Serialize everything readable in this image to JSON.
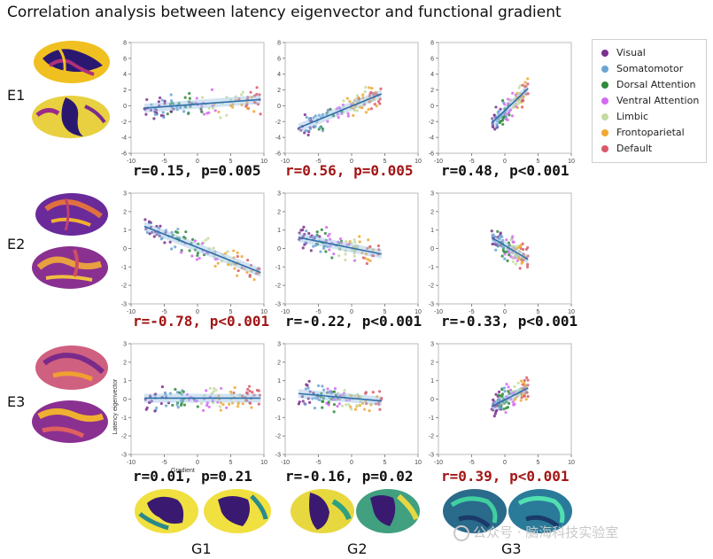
{
  "title": "Correlation analysis between latency eigenvector and functional gradient",
  "row_labels": [
    "E1",
    "E2",
    "E3"
  ],
  "column_labels": [
    "G1",
    "G2",
    "G3"
  ],
  "axis_labels": {
    "x": "Gradient",
    "y": "Latency eigenvector"
  },
  "legend": [
    {
      "label": "Visual",
      "color": "#7b2f8e"
    },
    {
      "label": "Somatomotor",
      "color": "#6aa4d4"
    },
    {
      "label": "Dorsal Attention",
      "color": "#2e8b3a"
    },
    {
      "label": "Ventral Attention",
      "color": "#d36bf0"
    },
    {
      "label": "Limbic",
      "color": "#c4dca0"
    },
    {
      "label": "Frontoparietal",
      "color": "#f0a830"
    },
    {
      "label": "Default",
      "color": "#d95a6a"
    }
  ],
  "stats": [
    [
      {
        "text": "r=0.15, p=0.005",
        "highlight": false
      },
      {
        "text": "r=0.56, p=0.005",
        "highlight": true
      },
      {
        "text": "r=0.48, p<0.001",
        "highlight": false
      }
    ],
    [
      {
        "text": "r=-0.78, p<0.001",
        "highlight": true
      },
      {
        "text": "r=-0.22, p<0.001",
        "highlight": false
      },
      {
        "text": "r=-0.33, p<0.001",
        "highlight": false
      }
    ],
    [
      {
        "text": "r=0.01, p=0.21",
        "highlight": false
      },
      {
        "text": "r=-0.16, p=0.02",
        "highlight": false
      },
      {
        "text": "r=0.39, p<0.001",
        "highlight": true
      }
    ]
  ],
  "colors": {
    "highlight": "#a31515",
    "normal": "#111111",
    "fit_line": "#2f6fa8",
    "band": "#9cc2e3"
  },
  "watermark": "公众号 · 脑海科技实验室",
  "chart_data": [
    {
      "type": "scatter",
      "row": "E1",
      "col": "G1",
      "xlim": [
        -10,
        10
      ],
      "ylim": [
        -6,
        8
      ],
      "xticks": [
        -10,
        -5,
        0,
        5,
        10
      ],
      "yticks": [
        -6,
        -4,
        -2,
        0,
        2,
        4,
        6,
        8
      ],
      "fit": {
        "x": [
          -8,
          9.5
        ],
        "y": [
          -0.3,
          0.8
        ]
      },
      "x_range": [
        -8,
        9.5
      ],
      "r": 0.15,
      "p": "0.005"
    },
    {
      "type": "scatter",
      "row": "E1",
      "col": "G2",
      "xlim": [
        -10,
        10
      ],
      "ylim": [
        -6,
        8
      ],
      "xticks": [
        -10,
        -5,
        0,
        5,
        10
      ],
      "yticks": [
        -6,
        -4,
        -2,
        0,
        2,
        4,
        6,
        8
      ],
      "fit": {
        "x": [
          -8,
          4.5
        ],
        "y": [
          -2.8,
          1.5
        ]
      },
      "x_range": [
        -8,
        4.5
      ],
      "r": 0.56,
      "p": "0.005"
    },
    {
      "type": "scatter",
      "row": "E1",
      "col": "G3",
      "xlim": [
        -10,
        10
      ],
      "ylim": [
        -6,
        8
      ],
      "xticks": [
        -10,
        -5,
        0,
        5,
        10
      ],
      "yticks": [
        -6,
        -4,
        -2,
        0,
        2,
        4,
        6,
        8
      ],
      "fit": {
        "x": [
          -2,
          3.5
        ],
        "y": [
          -2.2,
          2.2
        ]
      },
      "x_range": [
        -2,
        3.5
      ],
      "r": 0.48,
      "p": "<0.001"
    },
    {
      "type": "scatter",
      "row": "E2",
      "col": "G1",
      "xlim": [
        -10,
        10
      ],
      "ylim": [
        -3,
        3
      ],
      "xticks": [
        -10,
        -5,
        0,
        5,
        10
      ],
      "yticks": [
        -3,
        -2,
        -1,
        0,
        1,
        2,
        3
      ],
      "fit": {
        "x": [
          -8,
          9.5
        ],
        "y": [
          1.2,
          -1.3
        ]
      },
      "x_range": [
        -8,
        9.5
      ],
      "r": -0.78,
      "p": "<0.001"
    },
    {
      "type": "scatter",
      "row": "E2",
      "col": "G2",
      "xlim": [
        -10,
        10
      ],
      "ylim": [
        -3,
        3
      ],
      "xticks": [
        -10,
        -5,
        0,
        5,
        10
      ],
      "yticks": [
        -3,
        -2,
        -1,
        0,
        1,
        2,
        3
      ],
      "fit": {
        "x": [
          -8,
          4.5
        ],
        "y": [
          0.6,
          -0.3
        ]
      },
      "x_range": [
        -8,
        4.5
      ],
      "r": -0.22,
      "p": "<0.001"
    },
    {
      "type": "scatter",
      "row": "E2",
      "col": "G3",
      "xlim": [
        -10,
        10
      ],
      "ylim": [
        -3,
        3
      ],
      "xticks": [
        -10,
        -5,
        0,
        5,
        10
      ],
      "yticks": [
        -3,
        -2,
        -1,
        0,
        1,
        2,
        3
      ],
      "fit": {
        "x": [
          -2,
          3.5
        ],
        "y": [
          0.6,
          -0.6
        ]
      },
      "x_range": [
        -2,
        3.5
      ],
      "r": -0.33,
      "p": "<0.001"
    },
    {
      "type": "scatter",
      "row": "E3",
      "col": "G1",
      "xlim": [
        -10,
        10
      ],
      "ylim": [
        -3,
        3
      ],
      "xticks": [
        -10,
        -5,
        0,
        5,
        10
      ],
      "yticks": [
        -3,
        -2,
        -1,
        0,
        1,
        2,
        3
      ],
      "fit": {
        "x": [
          -8,
          9.5
        ],
        "y": [
          0.05,
          0.05
        ]
      },
      "x_range": [
        -8,
        9.5
      ],
      "r": 0.01,
      "p": "0.21",
      "xlabel": "Gradient",
      "ylabel": "Latency eigenvector"
    },
    {
      "type": "scatter",
      "row": "E3",
      "col": "G2",
      "xlim": [
        -10,
        10
      ],
      "ylim": [
        -3,
        3
      ],
      "xticks": [
        -10,
        -5,
        0,
        5,
        10
      ],
      "yticks": [
        -3,
        -2,
        -1,
        0,
        1,
        2,
        3
      ],
      "fit": {
        "x": [
          -8,
          4.5
        ],
        "y": [
          0.3,
          -0.1
        ]
      },
      "x_range": [
        -8,
        4.5
      ],
      "r": -0.16,
      "p": "0.02"
    },
    {
      "type": "scatter",
      "row": "E3",
      "col": "G3",
      "xlim": [
        -10,
        10
      ],
      "ylim": [
        -3,
        3
      ],
      "xticks": [
        -10,
        -5,
        0,
        5,
        10
      ],
      "yticks": [
        -3,
        -2,
        -1,
        0,
        1,
        2,
        3
      ],
      "fit": {
        "x": [
          -2,
          3.5
        ],
        "y": [
          -0.4,
          0.6
        ]
      },
      "x_range": [
        -2,
        3.5
      ],
      "r": 0.39,
      "p": "<0.001"
    }
  ]
}
